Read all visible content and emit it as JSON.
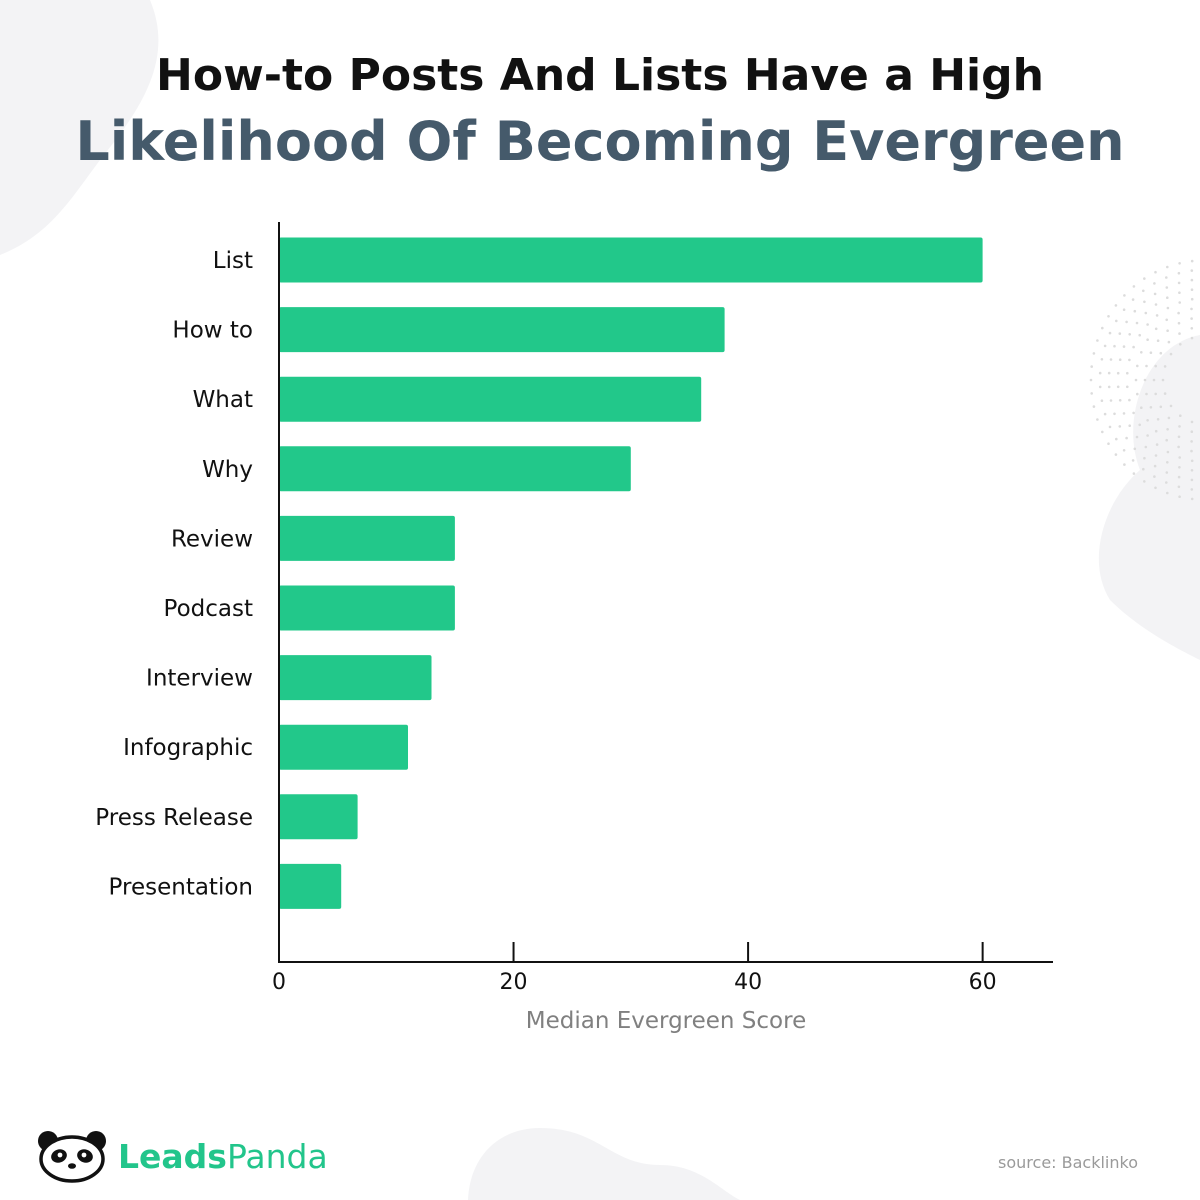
{
  "header": {
    "title_line1": "How-to Posts And Lists Have a High",
    "title_line2": "Likelihood Of Becoming Evergreen"
  },
  "chart_data": {
    "type": "bar",
    "orientation": "horizontal",
    "categories": [
      "List",
      "How to",
      "What",
      "Why",
      "Review",
      "Podcast",
      "Interview",
      "Infographic",
      "Press Release",
      "Presentation"
    ],
    "values": [
      60,
      38,
      36,
      30,
      15,
      15,
      13,
      11,
      6.7,
      5.3
    ],
    "xlabel": "Median Evergreen Score",
    "ylabel": "",
    "xlim": [
      0,
      66
    ],
    "xticks": [
      0,
      20,
      40,
      60
    ],
    "grid": false,
    "bar_color": "#22c88a"
  },
  "brand": {
    "logo_icon": "panda-icon",
    "name_bold": "Leads",
    "name_regular": "Panda",
    "color": "#22c58b"
  },
  "footer": {
    "source": "source: Backlinko"
  }
}
